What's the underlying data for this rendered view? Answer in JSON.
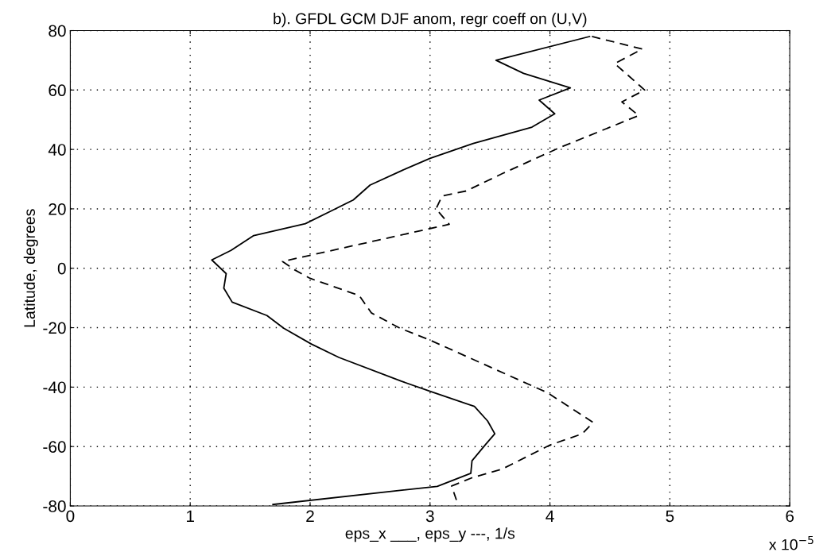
{
  "chart_data": {
    "type": "line",
    "title": "b). GFDL GCM DJF anom, regr coeff on (U,V)",
    "xlabel": "eps_x ___, eps_y ---, 1/s",
    "ylabel": "Latitude, degrees",
    "annotations": [
      "x 10$^{−5}$"
    ],
    "xlim": [
      0,
      6
    ],
    "xticks": [
      0,
      1,
      2,
      3,
      4,
      5,
      6
    ],
    "ylim": [
      -80,
      80
    ],
    "yticks": [
      -80,
      -60,
      -40,
      -20,
      0,
      20,
      40,
      60,
      80
    ],
    "grid": true,
    "legend": false,
    "series": [
      {
        "color": "#000000",
        "line_style": "solid",
        "x": [
          4.33,
          3.55,
          3.78,
          4.17,
          3.91,
          4.04,
          3.85,
          3.36,
          3.0,
          2.77,
          2.5,
          2.36,
          2.19,
          1.96,
          1.53,
          1.34,
          1.18,
          1.3,
          1.28,
          1.35,
          1.64,
          1.78,
          2.01,
          2.24,
          2.76,
          3.0,
          3.37,
          3.48,
          3.54,
          3.47,
          3.35,
          3.34,
          3.06,
          1.69
        ],
        "values": [
          78,
          70,
          65.6,
          60.7,
          56.6,
          52,
          47.5,
          42,
          37,
          33,
          28,
          23,
          19.6,
          15,
          11,
          6,
          2.8,
          -1.8,
          -6.7,
          -11.4,
          -15.9,
          -20.2,
          -25.5,
          -30,
          -38,
          -41.4,
          -46.5,
          -51.4,
          -55.7,
          -59,
          -64.8,
          -69,
          -73.4,
          -79.5
        ]
      },
      {
        "color": "#000000",
        "line_style": "dashed",
        "x": [
          4.35,
          4.77,
          4.54,
          4.79,
          4.6,
          4.74,
          4.08,
          3.61,
          3.3,
          3.1,
          3.05,
          3.16,
          1.77,
          1.87,
          2.0,
          2.41,
          2.51,
          2.75,
          2.99,
          3.98,
          4.25,
          4.36,
          4.27,
          4.0,
          3.6,
          3.35,
          3.18,
          3.22
        ],
        "values": [
          78,
          73.8,
          68.9,
          60,
          56,
          51.4,
          40.6,
          32,
          26,
          24.3,
          20,
          14.8,
          2.3,
          -0.5,
          -3.4,
          -9.2,
          -15,
          -20.2,
          -24,
          -41.9,
          -49,
          -51.9,
          -55.7,
          -59.5,
          -67.6,
          -70.5,
          -73.3,
          -78
        ]
      }
    ]
  }
}
